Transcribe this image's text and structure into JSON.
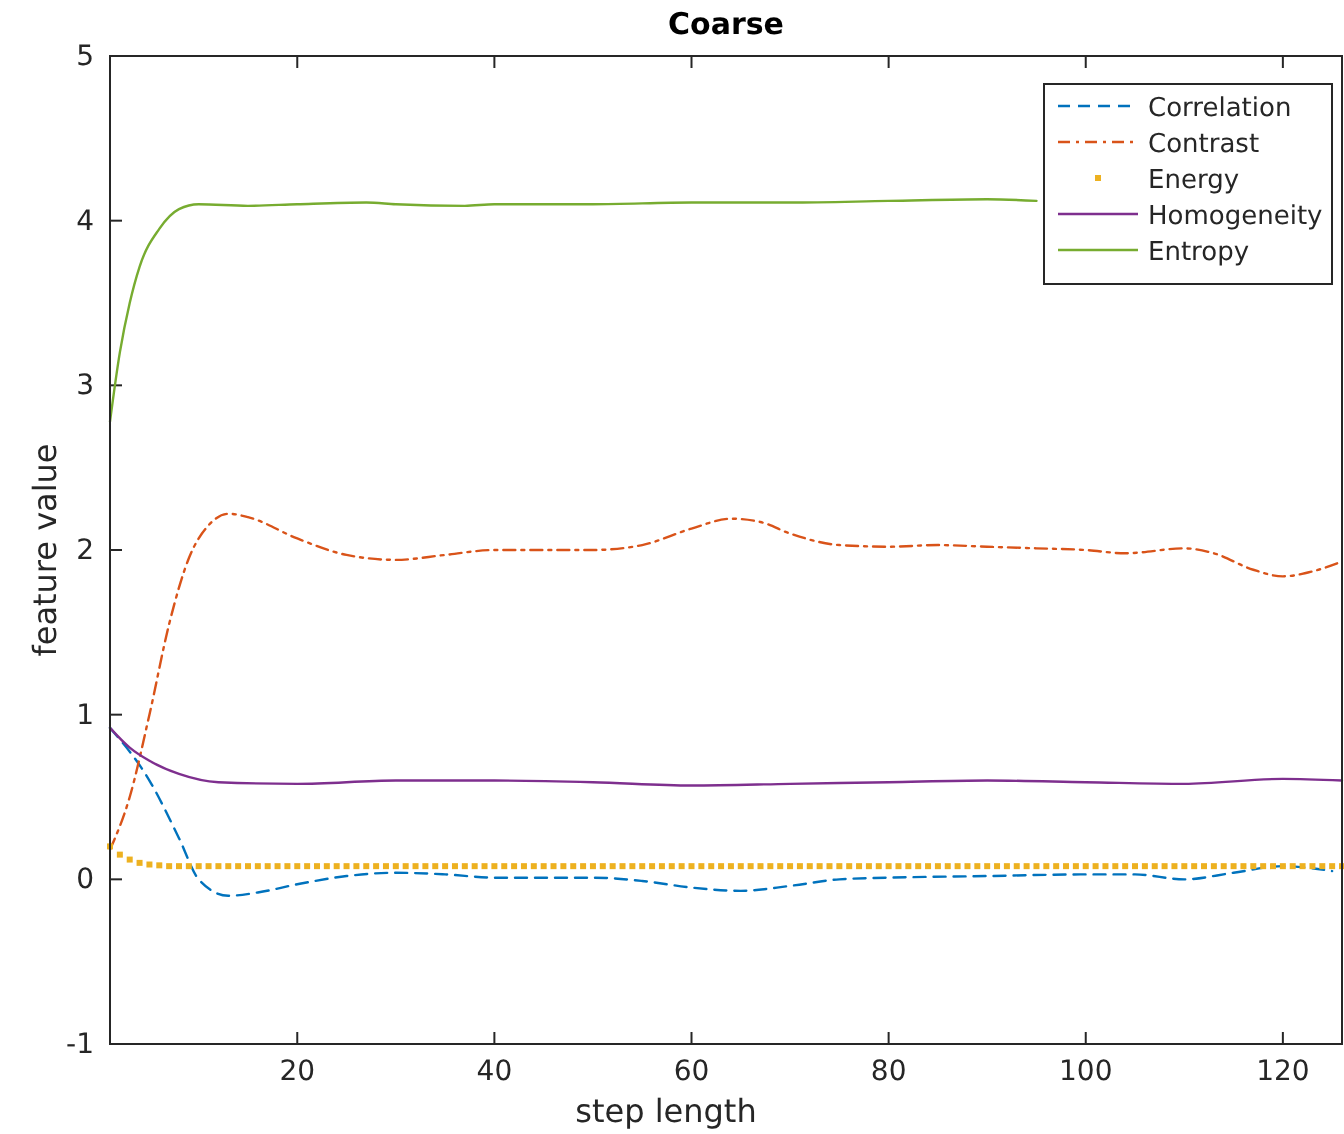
{
  "chart_data": {
    "type": "line",
    "title": "Coarse",
    "xlabel": "step length",
    "ylabel": "feature value",
    "xlim": [
      1,
      126
    ],
    "ylim": [
      -1,
      5
    ],
    "xticks": [
      20,
      40,
      60,
      80,
      100,
      120
    ],
    "yticks": [
      -1,
      0,
      1,
      2,
      3,
      4,
      5
    ],
    "legend": "top right",
    "grid": false,
    "series": [
      {
        "name": "Correlation",
        "color": "#0072bd",
        "line_style": "dashed",
        "marker": "none",
        "x": [
          1,
          5,
          8,
          10,
          13,
          16,
          20,
          25,
          30,
          35,
          40,
          45,
          50,
          55,
          60,
          65,
          70,
          75,
          80,
          90,
          100,
          105,
          110,
          115,
          120,
          125
        ],
        "values": [
          0.92,
          0.6,
          0.25,
          0.0,
          -0.1,
          -0.08,
          -0.03,
          0.02,
          0.04,
          0.03,
          0.01,
          0.01,
          0.01,
          -0.01,
          -0.05,
          -0.07,
          -0.04,
          0.0,
          0.01,
          0.02,
          0.03,
          0.03,
          0.0,
          0.04,
          0.08,
          0.05
        ]
      },
      {
        "name": "Contrast",
        "color": "#d95319",
        "line_style": "dashdot",
        "marker": "none",
        "x": [
          1,
          3,
          5,
          7,
          9,
          11,
          13,
          15,
          20,
          25,
          30,
          35,
          40,
          45,
          50,
          55,
          60,
          64,
          67,
          70,
          75,
          80,
          85,
          90,
          95,
          100,
          104,
          110,
          113,
          117,
          120,
          123,
          126
        ],
        "values": [
          0.18,
          0.5,
          1.0,
          1.55,
          1.95,
          2.15,
          2.22,
          2.2,
          2.07,
          1.97,
          1.94,
          1.97,
          2.0,
          2.0,
          2.0,
          2.03,
          2.13,
          2.19,
          2.17,
          2.1,
          2.03,
          2.02,
          2.03,
          2.02,
          2.01,
          2.0,
          1.98,
          2.01,
          1.98,
          1.88,
          1.84,
          1.87,
          1.93
        ]
      },
      {
        "name": "Energy",
        "type": "scatter",
        "color": "#edb120",
        "marker": "square",
        "x": [
          1,
          2,
          3,
          4,
          5,
          6,
          7,
          8,
          9,
          10,
          11,
          12,
          13,
          14,
          15,
          16,
          17,
          18,
          19,
          20,
          21,
          22,
          23,
          24,
          25,
          26,
          27,
          28,
          29,
          30,
          31,
          32,
          33,
          34,
          35,
          36,
          37,
          38,
          39,
          40,
          41,
          42,
          43,
          44,
          45,
          46,
          47,
          48,
          49,
          50,
          51,
          52,
          53,
          54,
          55,
          56,
          57,
          58,
          59,
          60,
          61,
          62,
          63,
          64,
          65,
          66,
          67,
          68,
          69,
          70,
          71,
          72,
          73,
          74,
          75,
          76,
          77,
          78,
          79,
          80,
          81,
          82,
          83,
          84,
          85,
          86,
          87,
          88,
          89,
          90,
          91,
          92,
          93,
          94,
          95,
          96,
          97,
          98,
          99,
          100,
          101,
          102,
          103,
          104,
          105,
          106,
          107,
          108,
          109,
          110,
          111,
          112,
          113,
          114,
          115,
          116,
          117,
          118,
          119,
          120,
          121,
          122,
          123,
          124,
          125,
          126
        ],
        "values": [
          0.2,
          0.15,
          0.12,
          0.1,
          0.09,
          0.085,
          0.08,
          0.08,
          0.08,
          0.08,
          0.08,
          0.08,
          0.08,
          0.08,
          0.08,
          0.08,
          0.08,
          0.08,
          0.08,
          0.08,
          0.08,
          0.08,
          0.08,
          0.08,
          0.08,
          0.08,
          0.08,
          0.08,
          0.08,
          0.08,
          0.08,
          0.08,
          0.08,
          0.08,
          0.08,
          0.08,
          0.08,
          0.08,
          0.08,
          0.08,
          0.08,
          0.08,
          0.08,
          0.08,
          0.08,
          0.08,
          0.08,
          0.08,
          0.08,
          0.08,
          0.08,
          0.08,
          0.08,
          0.08,
          0.08,
          0.08,
          0.08,
          0.08,
          0.08,
          0.08,
          0.08,
          0.08,
          0.08,
          0.08,
          0.08,
          0.08,
          0.08,
          0.08,
          0.08,
          0.08,
          0.08,
          0.08,
          0.08,
          0.08,
          0.08,
          0.08,
          0.08,
          0.08,
          0.08,
          0.08,
          0.08,
          0.08,
          0.08,
          0.08,
          0.08,
          0.08,
          0.08,
          0.08,
          0.08,
          0.08,
          0.08,
          0.08,
          0.08,
          0.08,
          0.08,
          0.08,
          0.08,
          0.08,
          0.08,
          0.08,
          0.08,
          0.08,
          0.08,
          0.08,
          0.08,
          0.08,
          0.08,
          0.08,
          0.08,
          0.08,
          0.08,
          0.08,
          0.08,
          0.08,
          0.08,
          0.08,
          0.08,
          0.08,
          0.08,
          0.08,
          0.08,
          0.08,
          0.08,
          0.08,
          0.08,
          0.08
        ]
      },
      {
        "name": "Homogeneity",
        "color": "#7e2f8e",
        "line_style": "solid",
        "marker": "none",
        "x": [
          1,
          3,
          5,
          8,
          12,
          20,
          30,
          40,
          50,
          60,
          70,
          80,
          90,
          100,
          110,
          120,
          126
        ],
        "values": [
          0.92,
          0.8,
          0.72,
          0.64,
          0.59,
          0.58,
          0.6,
          0.6,
          0.59,
          0.57,
          0.58,
          0.59,
          0.6,
          0.59,
          0.58,
          0.61,
          0.6
        ]
      },
      {
        "name": "Entropy",
        "color": "#77ac30",
        "line_style": "solid",
        "marker": "none",
        "x": [
          1,
          2,
          3,
          4,
          6,
          8,
          10,
          15,
          20,
          27,
          30,
          37,
          40,
          50,
          60,
          70,
          80,
          90,
          95
        ],
        "values": [
          2.78,
          3.2,
          3.5,
          3.72,
          3.95,
          4.07,
          4.1,
          4.09,
          4.1,
          4.11,
          4.1,
          4.09,
          4.1,
          4.1,
          4.11,
          4.11,
          4.12,
          4.13,
          4.12
        ]
      }
    ]
  }
}
